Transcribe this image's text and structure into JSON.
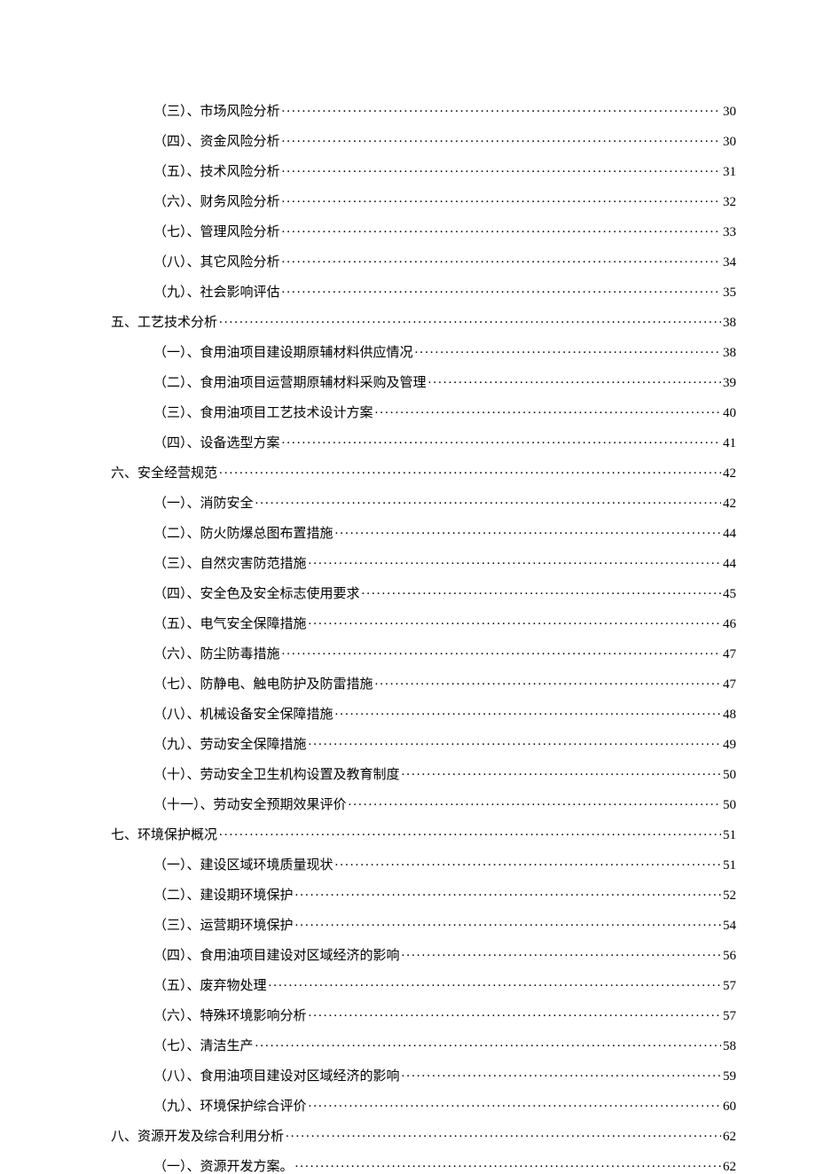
{
  "toc": [
    {
      "level": 2,
      "label": "（三）、市场风险分析",
      "page": "30"
    },
    {
      "level": 2,
      "label": "（四）、资金风险分析",
      "page": "30"
    },
    {
      "level": 2,
      "label": "（五）、技术风险分析",
      "page": "31"
    },
    {
      "level": 2,
      "label": "（六）、财务风险分析",
      "page": "32"
    },
    {
      "level": 2,
      "label": "（七）、管理风险分析",
      "page": "33"
    },
    {
      "level": 2,
      "label": "（八）、其它风险分析",
      "page": "34"
    },
    {
      "level": 2,
      "label": "（九）、社会影响评估",
      "page": "35"
    },
    {
      "level": 1,
      "label": "五、工艺技术分析",
      "page": "38"
    },
    {
      "level": 2,
      "label": "（一）、食用油项目建设期原辅材料供应情况",
      "page": "38"
    },
    {
      "level": 2,
      "label": "（二）、食用油项目运营期原辅材料采购及管理",
      "page": "39"
    },
    {
      "level": 2,
      "label": "（三）、食用油项目工艺技术设计方案",
      "page": "40"
    },
    {
      "level": 2,
      "label": "（四）、设备选型方案",
      "page": "41"
    },
    {
      "level": 1,
      "label": "六、安全经营规范",
      "page": "42"
    },
    {
      "level": 2,
      "label": "（一）、消防安全",
      "page": "42"
    },
    {
      "level": 2,
      "label": "（二）、防火防爆总图布置措施",
      "page": "44"
    },
    {
      "level": 2,
      "label": "（三）、自然灾害防范措施",
      "page": "44"
    },
    {
      "level": 2,
      "label": "（四）、安全色及安全标志使用要求",
      "page": "45"
    },
    {
      "level": 2,
      "label": "（五）、电气安全保障措施",
      "page": "46"
    },
    {
      "level": 2,
      "label": "（六）、防尘防毒措施",
      "page": "47"
    },
    {
      "level": 2,
      "label": "（七）、防静电、触电防护及防雷措施",
      "page": "47"
    },
    {
      "level": 2,
      "label": "（八）、机械设备安全保障措施",
      "page": "48"
    },
    {
      "level": 2,
      "label": "（九）、劳动安全保障措施",
      "page": "49"
    },
    {
      "level": 2,
      "label": "（十）、劳动安全卫生机构设置及教育制度",
      "page": "50"
    },
    {
      "level": 2,
      "label": "（十一）、劳动安全预期效果评价",
      "page": "50"
    },
    {
      "level": 1,
      "label": "七、环境保护概况",
      "page": "51"
    },
    {
      "level": 2,
      "label": "（一）、建设区域环境质量现状",
      "page": "51"
    },
    {
      "level": 2,
      "label": "（二）、建设期环境保护",
      "page": "52"
    },
    {
      "level": 2,
      "label": "（三）、运营期环境保护",
      "page": "54"
    },
    {
      "level": 2,
      "label": "（四）、食用油项目建设对区域经济的影响",
      "page": "56"
    },
    {
      "level": 2,
      "label": "（五）、废弃物处理",
      "page": "57"
    },
    {
      "level": 2,
      "label": "（六）、特殊环境影响分析",
      "page": "57"
    },
    {
      "level": 2,
      "label": "（七）、清洁生产",
      "page": "58"
    },
    {
      "level": 2,
      "label": "（八）、食用油项目建设对区域经济的影响",
      "page": "59"
    },
    {
      "level": 2,
      "label": "（九）、环境保护综合评价",
      "page": "60"
    },
    {
      "level": 1,
      "label": "八、资源开发及综合利用分析",
      "page": "62"
    },
    {
      "level": 2,
      "label": "（一）、资源开发方案。",
      "page": "62"
    }
  ]
}
